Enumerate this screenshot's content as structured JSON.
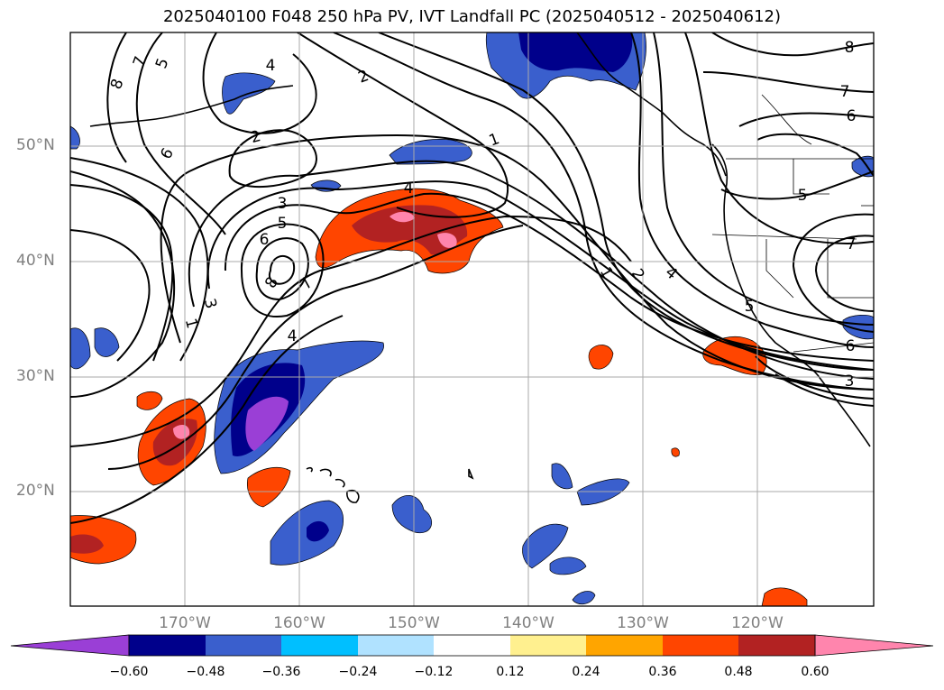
{
  "title": "2025040100 F048 250 hPa PV, IVT Landfall PC (2025040512 - 2025040612)",
  "map": {
    "lat_labels": [
      "50°N",
      "40°N",
      "30°N",
      "20°N"
    ],
    "lon_labels": [
      "170°W",
      "160°W",
      "150°W",
      "140°W",
      "130°W",
      "120°W"
    ],
    "contour_labels": [
      "8",
      "7",
      "5",
      "4",
      "2",
      "2",
      "1",
      "1",
      "2",
      "3",
      "4",
      "5",
      "6",
      "7",
      "8",
      "6",
      "5",
      "7",
      "6",
      "4",
      "3",
      "1",
      "3",
      "5",
      "6",
      "7",
      "8",
      "4"
    ]
  },
  "colorbar": {
    "ticks": [
      "−0.60",
      "−0.48",
      "−0.36",
      "−0.24",
      "−0.12",
      "0.12",
      "0.24",
      "0.36",
      "0.48",
      "0.60"
    ],
    "colors": [
      "#9a3fd6",
      "#00008b",
      "#3a5fcd",
      "#00bfff",
      "#b0e2ff",
      "#ffffff",
      "#fff08f",
      "#ffa500",
      "#ff4500",
      "#b22222",
      "#ff85ad",
      "#ff85ad"
    ]
  }
}
